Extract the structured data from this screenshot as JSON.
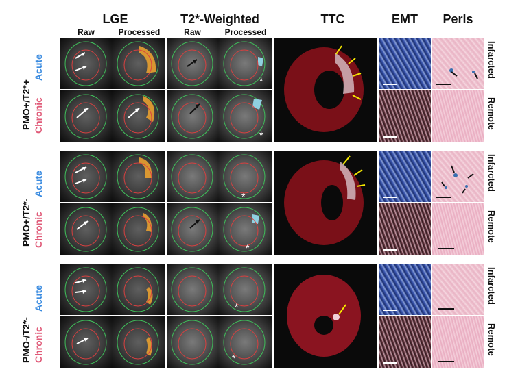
{
  "headers": {
    "lge": "LGE",
    "t2": "T2*-Weighted",
    "ttc": "TTC",
    "emt": "EMT",
    "perls": "Perls",
    "raw": "Raw",
    "processed": "Processed"
  },
  "groups": [
    {
      "label": "PMO+/T2*+",
      "acute": "Acute",
      "chronic": "Chronic"
    },
    {
      "label": "PMO+/T2*-",
      "acute": "Acute",
      "chronic": "Chronic"
    },
    {
      "label": "PMO-/T2*-",
      "acute": "Acute",
      "chronic": "Chronic"
    }
  ],
  "side_labels": {
    "infarcted": "Infarcted",
    "remote": "Remote"
  },
  "markers": {
    "asterisk": "*"
  },
  "colors": {
    "acute": "#3a8be0",
    "chronic": "#e05a78",
    "epicardial_contour": "#3fbf5a",
    "endocardial_contour": "#d94040",
    "lge_overlay": "#e8a030",
    "t2_overlay": "#8fd0e0",
    "ttc_arrow": "#f5e800",
    "mri_arrow": "#ffffff",
    "perls_arrow": "#111111"
  }
}
